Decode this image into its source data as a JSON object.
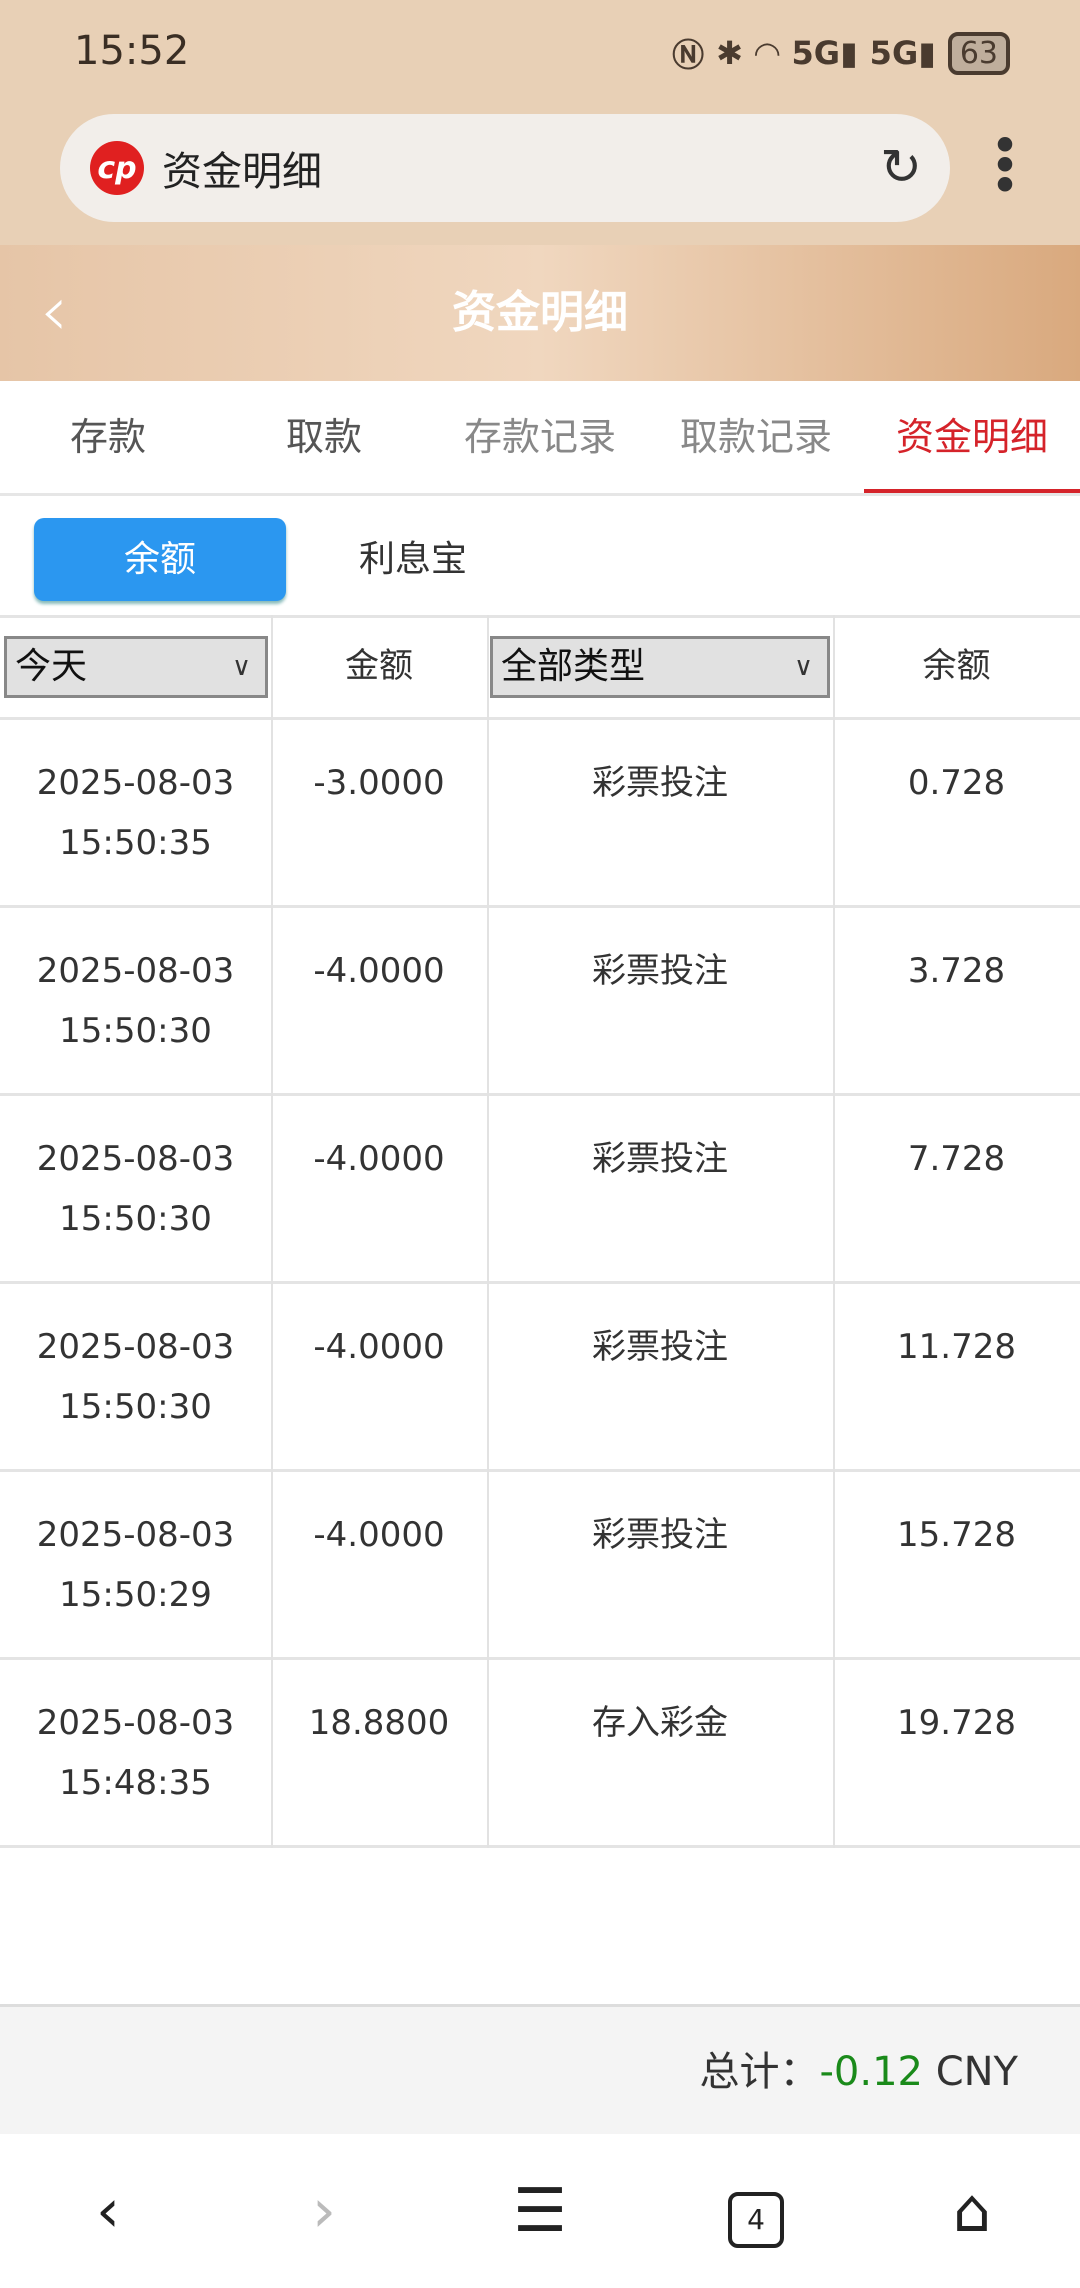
{
  "status": {
    "time": "15:52",
    "battery": "63",
    "icons": [
      "nfc-icon",
      "bluetooth-icon",
      "wifi-icon",
      "5g-signal-icon",
      "5g-signal-icon",
      "battery-icon"
    ]
  },
  "browser": {
    "url_title": "资金明细",
    "logo_text": "cp"
  },
  "header": {
    "title": "资金明细"
  },
  "tabs": [
    {
      "label": "存款"
    },
    {
      "label": "取款"
    },
    {
      "label": "存款记录"
    },
    {
      "label": "取款记录"
    },
    {
      "label": "资金明细",
      "active": true
    }
  ],
  "subtabs": [
    {
      "label": "余额",
      "active": true
    },
    {
      "label": "利息宝"
    }
  ],
  "table": {
    "headers": {
      "date_filter": "今天",
      "amount": "金额",
      "type_filter": "全部类型",
      "balance": "余额"
    },
    "rows": [
      {
        "date": "2025-08-03",
        "time": "15:50:35",
        "amount": "-3.0000",
        "type": "彩票投注",
        "balance": "0.728"
      },
      {
        "date": "2025-08-03",
        "time": "15:50:30",
        "amount": "-4.0000",
        "type": "彩票投注",
        "balance": "3.728"
      },
      {
        "date": "2025-08-03",
        "time": "15:50:30",
        "amount": "-4.0000",
        "type": "彩票投注",
        "balance": "7.728"
      },
      {
        "date": "2025-08-03",
        "time": "15:50:30",
        "amount": "-4.0000",
        "type": "彩票投注",
        "balance": "11.728"
      },
      {
        "date": "2025-08-03",
        "time": "15:50:29",
        "amount": "-4.0000",
        "type": "彩票投注",
        "balance": "15.728"
      },
      {
        "date": "2025-08-03",
        "time": "15:48:35",
        "amount": "18.8800",
        "type": "存入彩金",
        "balance": "19.728"
      }
    ]
  },
  "footer": {
    "label": "总计：",
    "value": "-0.12",
    "currency": "CNY",
    "value_color": "#1a8a1a"
  },
  "nav": {
    "tab_count": "4"
  },
  "colors": {
    "accent": "#d5232a",
    "button": "#2b97f0"
  }
}
